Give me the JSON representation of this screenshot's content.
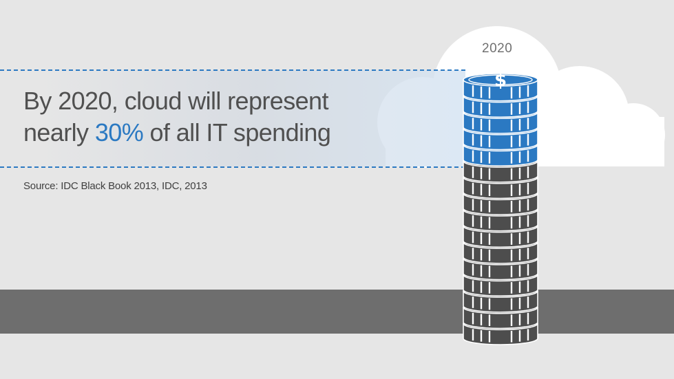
{
  "headline": {
    "line1": "By 2020, cloud will represent",
    "line2_before": "nearly ",
    "line2_highlight": "30%",
    "line2_after": " of all IT spending"
  },
  "source": "Source: IDC Black Book 2013, IDC, 2013",
  "cloud": {
    "year": "2020"
  },
  "coin_stack": {
    "total_coins": 16,
    "cloud_coins": 5,
    "coin_symbol": "$",
    "cloud_color": "#2b79c2",
    "other_color": "#4d4d4d"
  },
  "colors": {
    "accent": "#2b79c2",
    "ground": "#6e6e6e",
    "background": "#e6e6e6"
  }
}
